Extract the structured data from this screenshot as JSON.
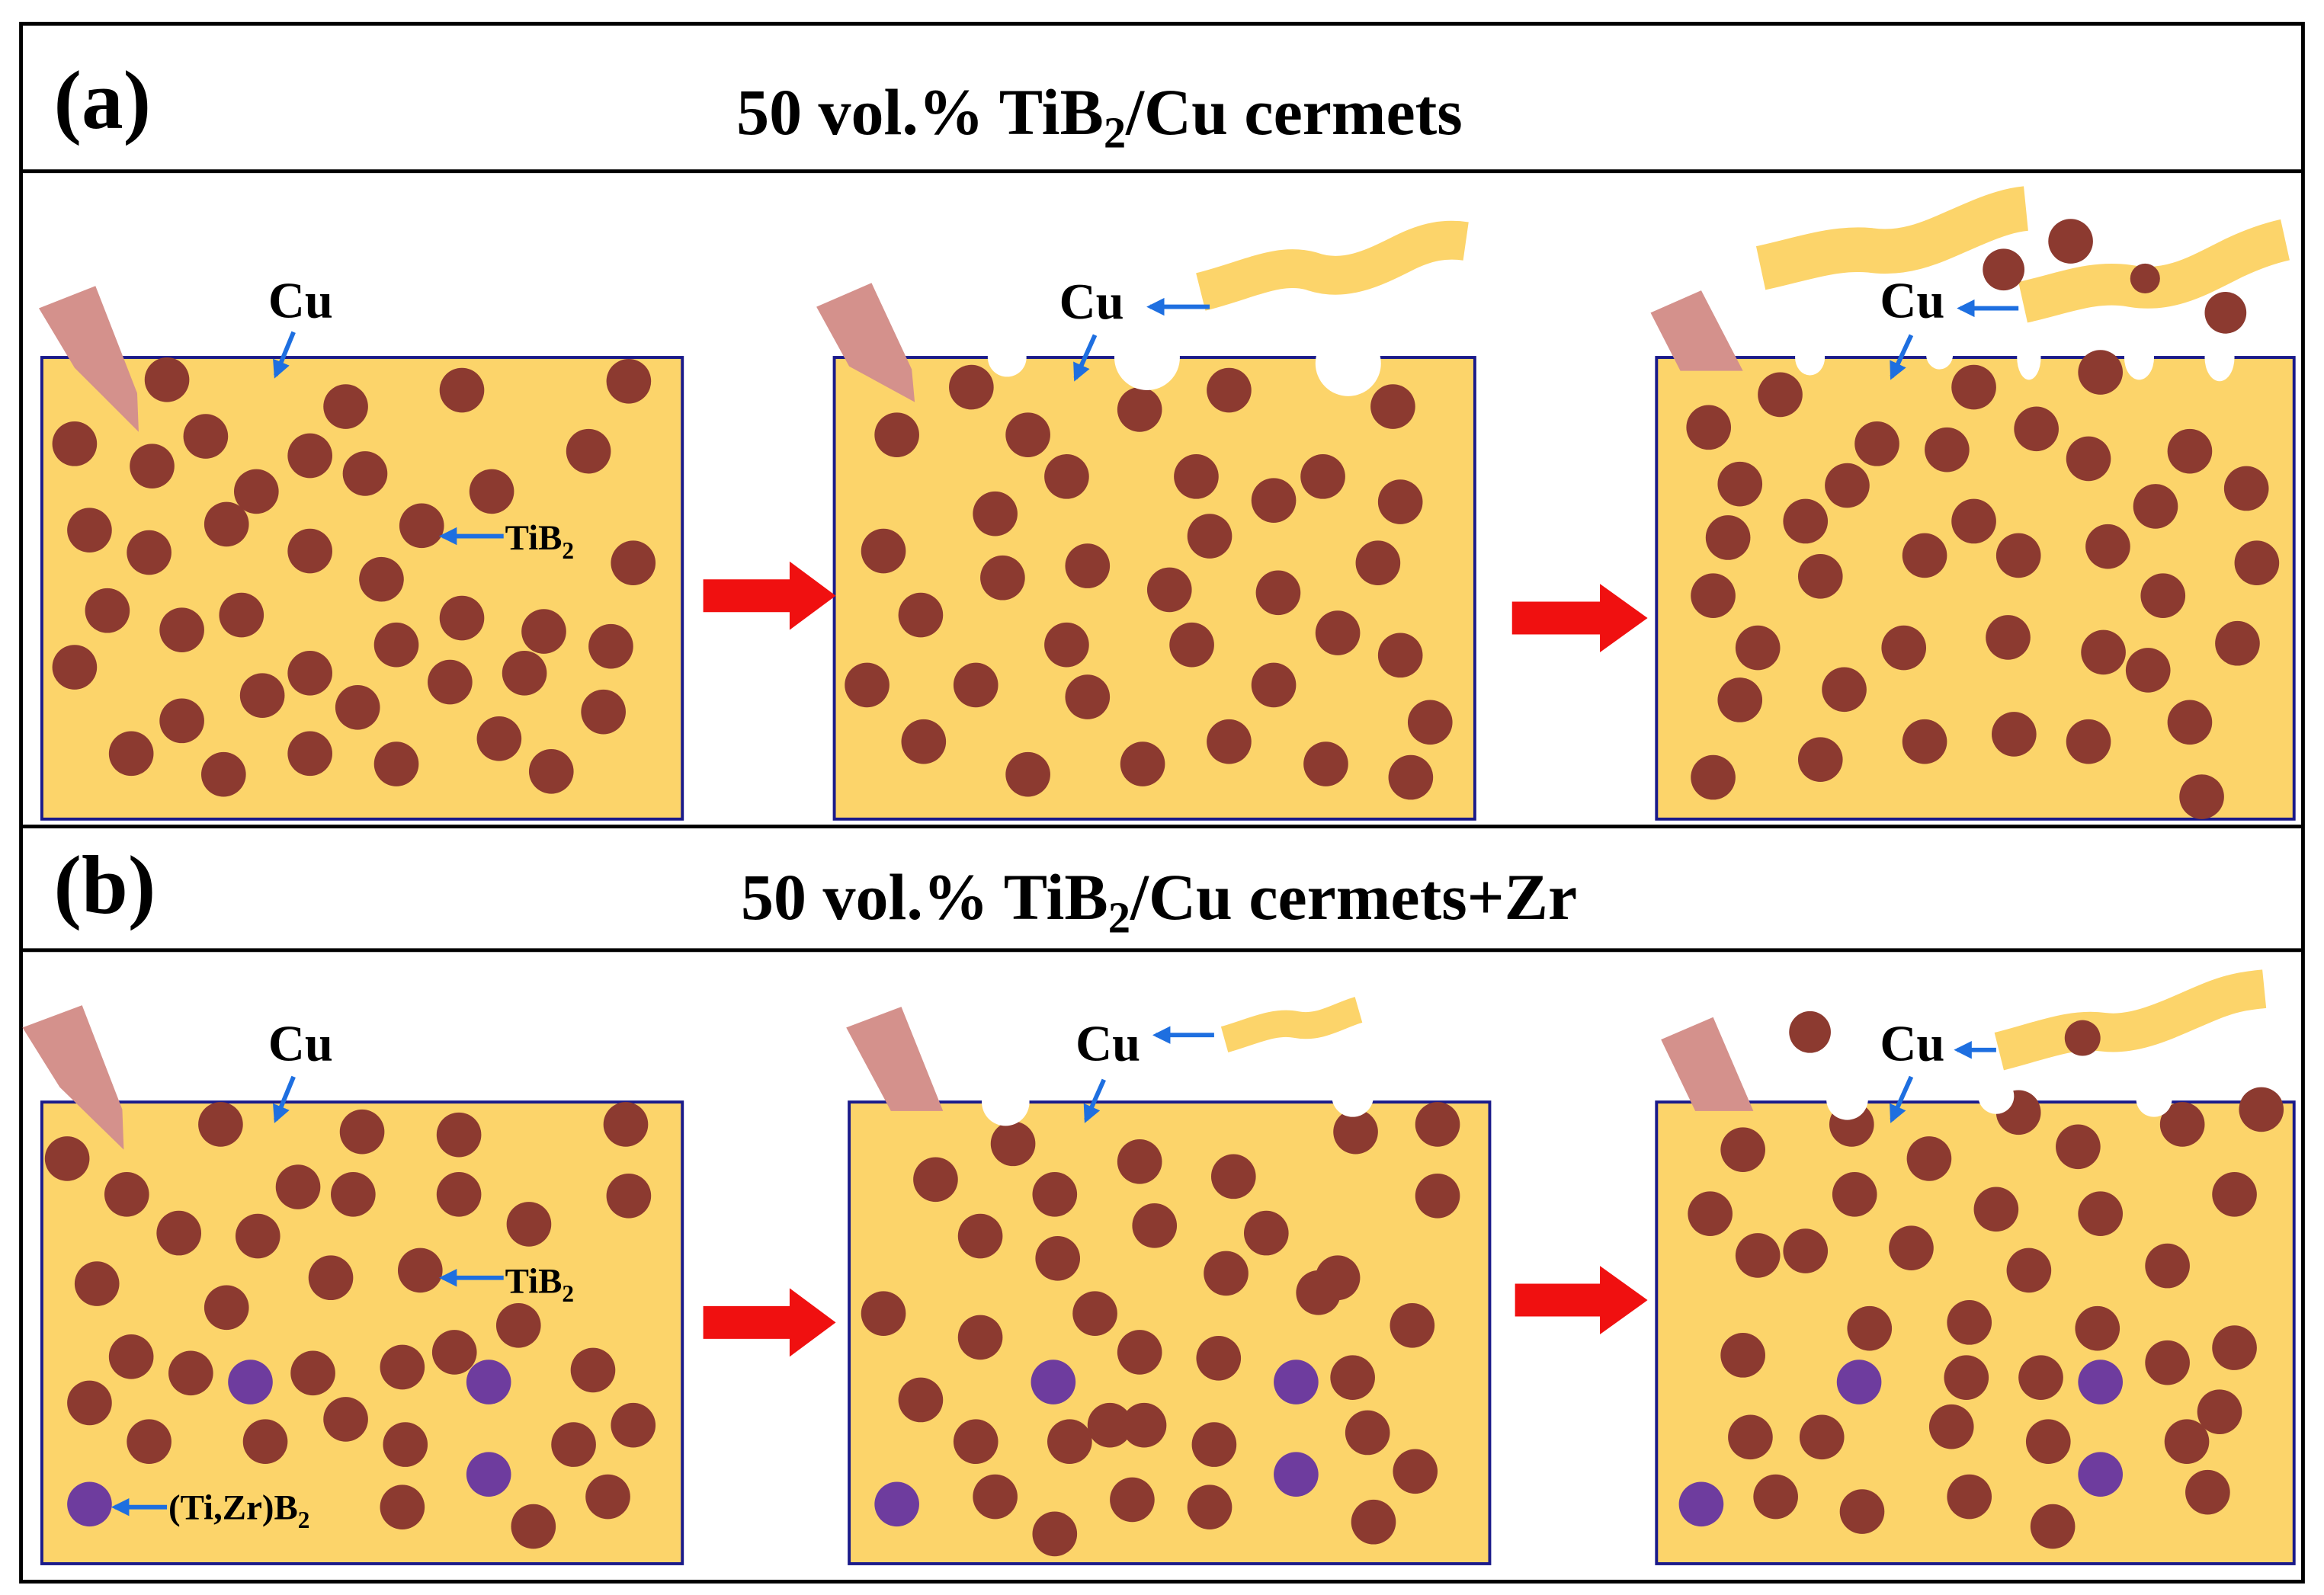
{
  "panel_a": {
    "label": "(a)",
    "title": {
      "pre": "50 vol.% TiB",
      "sub": "2",
      "post": "/Cu cermets"
    },
    "stage_1": {
      "matrix_label": "Cu",
      "particle_label": {
        "pre": "TiB",
        "sub": "2"
      }
    },
    "stage_2": {
      "matrix_label": "Cu"
    },
    "stage_3": {
      "matrix_label": "Cu"
    }
  },
  "panel_b": {
    "label": "(b)",
    "title": {
      "pre": "50 vol.% TiB",
      "sub": "2",
      "post": "/Cu cermets+Zr"
    },
    "stage_1": {
      "matrix_label": "Cu",
      "particle_label": {
        "pre": "TiB",
        "sub": "2"
      },
      "second_particle_label": {
        "pre": "(Ti,Zr)B",
        "sub": "2"
      }
    },
    "stage_2": {
      "matrix_label": "Cu"
    },
    "stage_3": {
      "matrix_label": "Cu"
    }
  },
  "colors": {
    "matrix": "#FCD46A",
    "tib2_particle": "#8C3A30",
    "tizrb2_particle": "#6E3C9E",
    "tool": "#D4918C",
    "process_arrow": "#F01010",
    "label_arrow": "#1E6FE0",
    "box_border": "#1A1A8A"
  }
}
